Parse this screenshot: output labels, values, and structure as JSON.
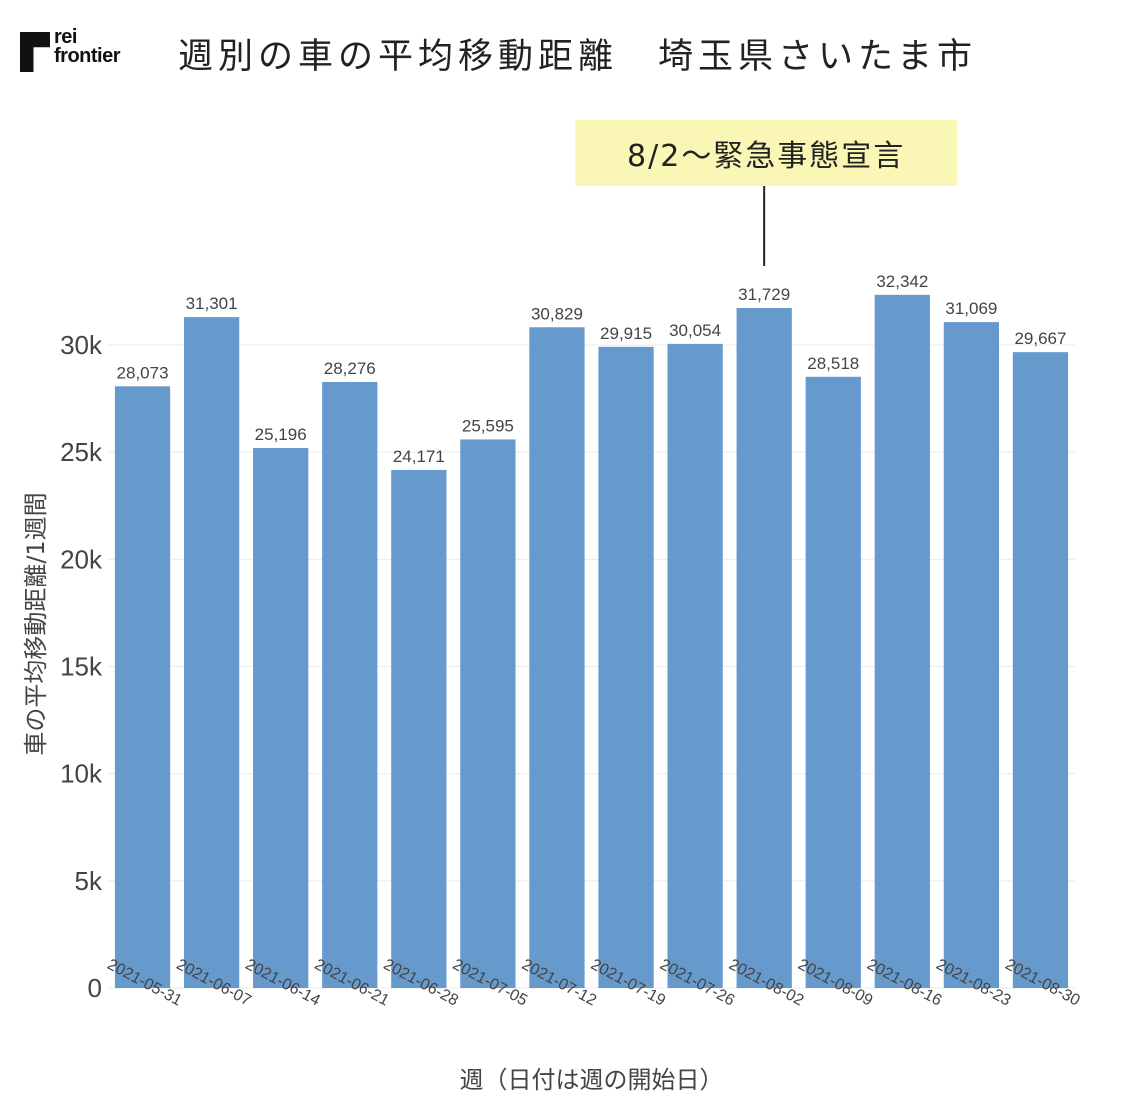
{
  "header": {
    "logo_line1": "rei",
    "logo_line2": "frontier",
    "title": "週別の車の平均移動距離　埼玉県さいたま市"
  },
  "colors": {
    "bar": "#6699CC",
    "annotation_bg": "#FAF6B6",
    "grid": "#EBEBEB"
  },
  "chart_data": {
    "type": "bar",
    "categories": [
      "2021-05-31",
      "2021-06-07",
      "2021-06-14",
      "2021-06-21",
      "2021-06-28",
      "2021-07-05",
      "2021-07-12",
      "2021-07-19",
      "2021-07-26",
      "2021-08-02",
      "2021-08-09",
      "2021-08-16",
      "2021-08-23",
      "2021-08-30"
    ],
    "values": [
      28073,
      31301,
      25196,
      28276,
      24171,
      25595,
      30829,
      29915,
      30054,
      31729,
      28518,
      32342,
      31069,
      29667
    ],
    "value_labels": [
      "28,073",
      "31,301",
      "25,196",
      "28,276",
      "24,171",
      "25,595",
      "30,829",
      "29,915",
      "30,054",
      "31,729",
      "28,518",
      "32,342",
      "31,069",
      "29,667"
    ],
    "xlabel": "週（日付は週の開始日）",
    "ylabel": "車の平均移動距離/1週間",
    "ylim": [
      0,
      33000
    ],
    "yticks": [
      0,
      5000,
      10000,
      15000,
      20000,
      25000,
      30000
    ],
    "ytick_labels": [
      "0",
      "5k",
      "10k",
      "15k",
      "20k",
      "25k",
      "30k"
    ],
    "grid": true,
    "annotation": {
      "text": "8/2～緊急事態宣言",
      "category": "2021-08-02"
    }
  }
}
